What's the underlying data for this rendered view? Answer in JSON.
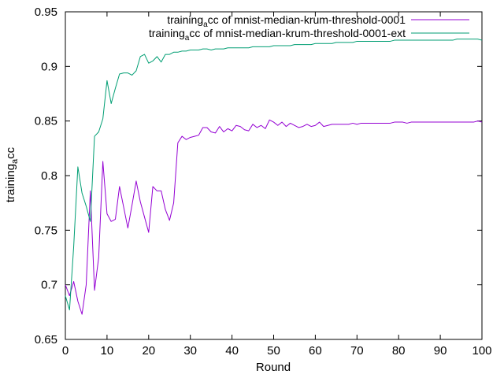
{
  "chart_data": {
    "type": "line",
    "title": "",
    "xlabel": "Round",
    "ylabel_main": "training",
    "ylabel_sub": "a",
    "ylabel_tail": "cc",
    "xlim": [
      0,
      100
    ],
    "ylim": [
      0.65,
      0.95
    ],
    "xticks": [
      0,
      10,
      20,
      30,
      40,
      50,
      60,
      70,
      80,
      90,
      100
    ],
    "yticks": [
      0.65,
      0.7,
      0.75,
      0.8,
      0.85,
      0.9,
      0.95
    ],
    "ytick_labels": [
      "0.65",
      "0.7",
      "0.75",
      "0.8",
      "0.85",
      "0.9",
      "0.95"
    ],
    "grid": false,
    "legend_position": "top-right",
    "series": [
      {
        "name_main": "training",
        "name_sub": "a",
        "name_tail": "cc of mnist-median-krum-threshold-0001",
        "color": "#9400d3",
        "x": [
          0,
          1,
          2,
          3,
          4,
          5,
          6,
          7,
          8,
          9,
          10,
          11,
          12,
          13,
          14,
          15,
          16,
          17,
          18,
          19,
          20,
          21,
          22,
          23,
          24,
          25,
          26,
          27,
          28,
          29,
          30,
          31,
          32,
          33,
          34,
          35,
          36,
          37,
          38,
          39,
          40,
          41,
          42,
          43,
          44,
          45,
          46,
          47,
          48,
          49,
          50,
          51,
          52,
          53,
          54,
          55,
          56,
          57,
          58,
          59,
          60,
          61,
          62,
          63,
          64,
          65,
          66,
          67,
          68,
          69,
          70,
          71,
          72,
          73,
          74,
          75,
          76,
          77,
          78,
          79,
          80,
          81,
          82,
          83,
          84,
          85,
          86,
          87,
          88,
          89,
          90,
          91,
          92,
          93,
          94,
          95,
          96,
          97,
          98,
          99,
          100
        ],
        "y": [
          0.7,
          0.69,
          0.703,
          0.685,
          0.673,
          0.7,
          0.786,
          0.695,
          0.725,
          0.813,
          0.765,
          0.758,
          0.76,
          0.79,
          0.771,
          0.752,
          0.773,
          0.795,
          0.776,
          0.762,
          0.748,
          0.79,
          0.786,
          0.786,
          0.769,
          0.759,
          0.775,
          0.83,
          0.836,
          0.833,
          0.835,
          0.836,
          0.837,
          0.844,
          0.844,
          0.84,
          0.839,
          0.845,
          0.84,
          0.843,
          0.841,
          0.846,
          0.845,
          0.842,
          0.841,
          0.847,
          0.844,
          0.846,
          0.843,
          0.851,
          0.849,
          0.846,
          0.849,
          0.845,
          0.848,
          0.846,
          0.844,
          0.845,
          0.847,
          0.845,
          0.846,
          0.849,
          0.845,
          0.846,
          0.847,
          0.847,
          0.847,
          0.847,
          0.847,
          0.848,
          0.847,
          0.848,
          0.848,
          0.848,
          0.848,
          0.848,
          0.848,
          0.848,
          0.848,
          0.849,
          0.849,
          0.849,
          0.848,
          0.849,
          0.849,
          0.849,
          0.849,
          0.849,
          0.849,
          0.849,
          0.849,
          0.849,
          0.849,
          0.849,
          0.849,
          0.849,
          0.849,
          0.849,
          0.849,
          0.85,
          0.849
        ]
      },
      {
        "name_main": "training",
        "name_sub": "a",
        "name_tail": "cc of mnist-median-krum-threshold-0001-ext",
        "color": "#009e73",
        "x": [
          0,
          1,
          2,
          3,
          4,
          5,
          6,
          7,
          8,
          9,
          10,
          11,
          12,
          13,
          14,
          15,
          16,
          17,
          18,
          19,
          20,
          21,
          22,
          23,
          24,
          25,
          26,
          27,
          28,
          29,
          30,
          31,
          32,
          33,
          34,
          35,
          36,
          37,
          38,
          39,
          40,
          41,
          42,
          43,
          44,
          45,
          46,
          47,
          48,
          49,
          50,
          51,
          52,
          53,
          54,
          55,
          56,
          57,
          58,
          59,
          60,
          61,
          62,
          63,
          64,
          65,
          66,
          67,
          68,
          69,
          70,
          71,
          72,
          73,
          74,
          75,
          76,
          77,
          78,
          79,
          80,
          81,
          82,
          83,
          84,
          85,
          86,
          87,
          88,
          89,
          90,
          91,
          92,
          93,
          94,
          95,
          96,
          97,
          98,
          99,
          100
        ],
        "y": [
          0.69,
          0.677,
          0.735,
          0.808,
          0.784,
          0.772,
          0.758,
          0.836,
          0.84,
          0.852,
          0.887,
          0.866,
          0.88,
          0.893,
          0.894,
          0.894,
          0.892,
          0.896,
          0.909,
          0.911,
          0.903,
          0.905,
          0.909,
          0.904,
          0.911,
          0.911,
          0.913,
          0.913,
          0.914,
          0.914,
          0.915,
          0.915,
          0.915,
          0.916,
          0.916,
          0.915,
          0.916,
          0.916,
          0.916,
          0.917,
          0.917,
          0.917,
          0.917,
          0.917,
          0.917,
          0.918,
          0.918,
          0.918,
          0.918,
          0.918,
          0.919,
          0.919,
          0.919,
          0.919,
          0.919,
          0.92,
          0.92,
          0.92,
          0.92,
          0.92,
          0.921,
          0.921,
          0.921,
          0.921,
          0.921,
          0.922,
          0.922,
          0.922,
          0.922,
          0.922,
          0.923,
          0.923,
          0.923,
          0.923,
          0.923,
          0.923,
          0.923,
          0.923,
          0.923,
          0.924,
          0.924,
          0.924,
          0.924,
          0.924,
          0.924,
          0.924,
          0.924,
          0.924,
          0.924,
          0.924,
          0.924,
          0.924,
          0.924,
          0.924,
          0.925,
          0.925,
          0.925,
          0.925,
          0.925,
          0.925,
          0.924
        ]
      }
    ]
  }
}
